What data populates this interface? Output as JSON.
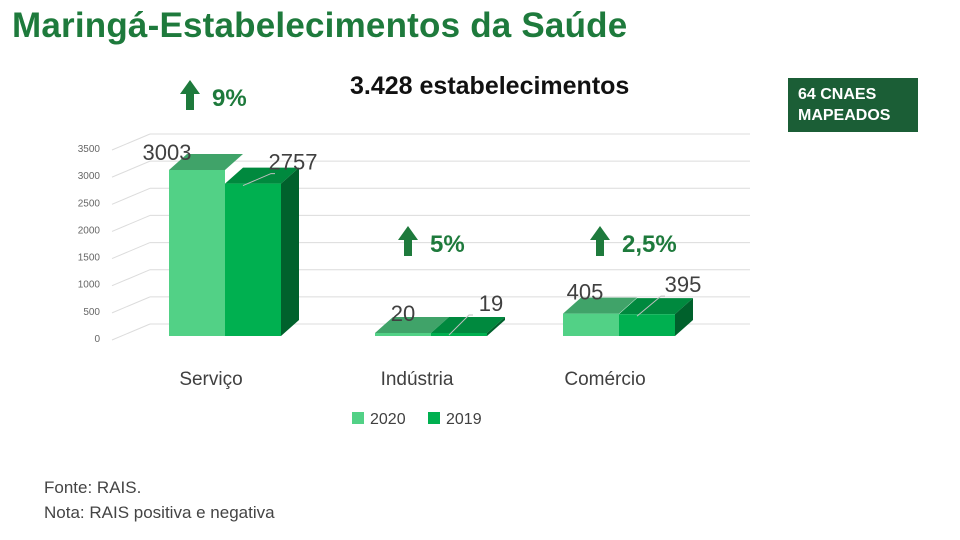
{
  "header": {
    "title": "Maringá-Estabelecimentos da Saúde",
    "subtitle": "3.428 estabelecimentos",
    "badge_line1": "64 CNAES",
    "badge_line2": "MAPEADOS"
  },
  "colors": {
    "title": "#1e7a3c",
    "series_2020": "#52d186",
    "series_2019": "#00b050",
    "arrow": "#1e7a3c",
    "badge": "#1b5e36"
  },
  "growth": [
    {
      "category": "Serviço",
      "label": "9%",
      "icon": "arrow-up-icon"
    },
    {
      "category": "Indústria",
      "label": "5%",
      "icon": "arrow-up-icon"
    },
    {
      "category": "Comércio",
      "label": "2,5%",
      "icon": "arrow-up-icon"
    }
  ],
  "chart_data": {
    "type": "bar",
    "style": "3d-clustered-column",
    "categories": [
      "Serviço",
      "Indústria",
      "Comércio"
    ],
    "series": [
      {
        "name": "2020",
        "values": [
          3003,
          20,
          405
        ],
        "color": "#52d186"
      },
      {
        "name": "2019",
        "values": [
          2757,
          19,
          395
        ],
        "color": "#00b050"
      }
    ],
    "y_ticks": [
      0,
      500,
      1000,
      1500,
      2000,
      2500,
      3000,
      3500
    ],
    "ylim": [
      0,
      3500
    ],
    "grid": true,
    "legend_position": "bottom",
    "data_labels": true
  },
  "footer": {
    "source": "Fonte: RAIS.",
    "note": "Nota: RAIS positiva e negativa"
  }
}
